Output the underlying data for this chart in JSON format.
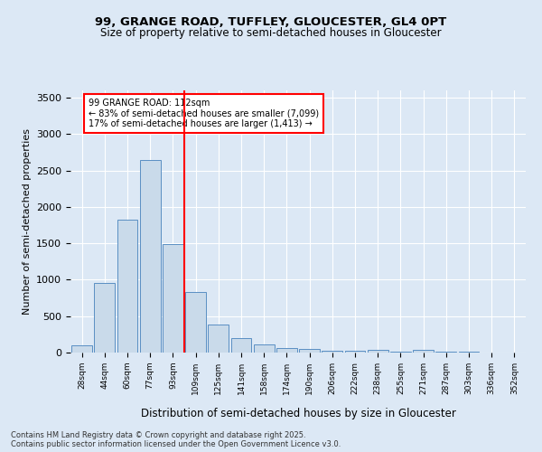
{
  "title1": "99, GRANGE ROAD, TUFFLEY, GLOUCESTER, GL4 0PT",
  "title2": "Size of property relative to semi-detached houses in Gloucester",
  "xlabel": "Distribution of semi-detached houses by size in Gloucester",
  "ylabel": "Number of semi-detached properties",
  "bin_labels": [
    "28sqm",
    "44sqm",
    "60sqm",
    "77sqm",
    "93sqm",
    "109sqm",
    "125sqm",
    "141sqm",
    "158sqm",
    "174sqm",
    "190sqm",
    "206sqm",
    "222sqm",
    "238sqm",
    "255sqm",
    "271sqm",
    "287sqm",
    "303sqm",
    "336sqm",
    "352sqm"
  ],
  "bar_heights": [
    95,
    950,
    1820,
    2640,
    1490,
    830,
    390,
    200,
    110,
    65,
    50,
    30,
    20,
    35,
    15,
    40,
    10,
    10,
    5,
    3
  ],
  "bar_color": "#c9daea",
  "bar_edge_color": "#5a8fc3",
  "vline_x_idx": 5,
  "vline_color": "red",
  "annotation_title": "99 GRANGE ROAD: 112sqm",
  "annotation_line1": "← 83% of semi-detached houses are smaller (7,099)",
  "annotation_line2": "17% of semi-detached houses are larger (1,413) →",
  "annotation_box_color": "white",
  "annotation_edge_color": "red",
  "ylim": [
    0,
    3600
  ],
  "yticks": [
    0,
    500,
    1000,
    1500,
    2000,
    2500,
    3000,
    3500
  ],
  "footer1": "Contains HM Land Registry data © Crown copyright and database right 2025.",
  "footer2": "Contains public sector information licensed under the Open Government Licence v3.0.",
  "bg_color": "#dce8f5",
  "plot_bg_color": "#dce8f5"
}
